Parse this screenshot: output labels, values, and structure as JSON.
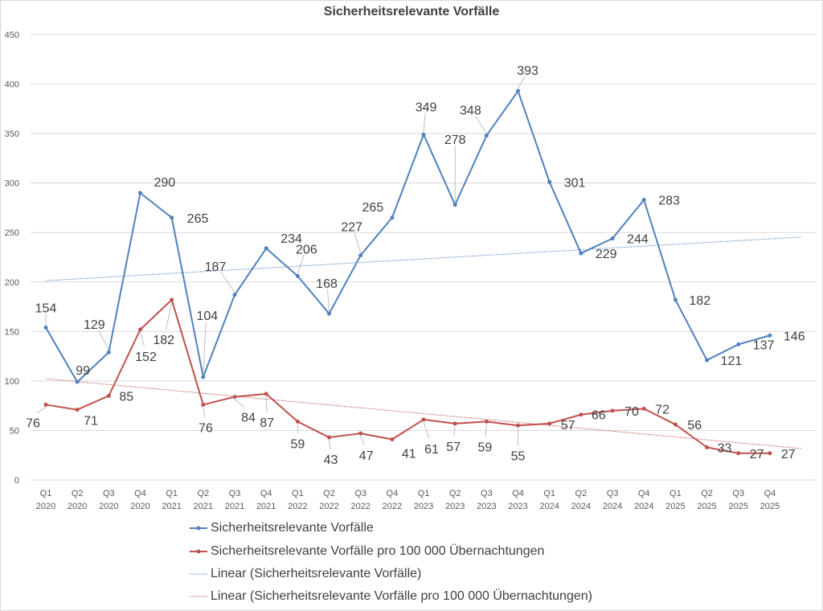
{
  "chart_data": {
    "type": "line",
    "title": "Sicherheitsrelevante Vorfälle",
    "xlabel": "",
    "ylabel": "",
    "ylim": [
      0,
      450
    ],
    "yticks": [
      0,
      50,
      100,
      150,
      200,
      250,
      300,
      350,
      400,
      450
    ],
    "grid": true,
    "legend_placement": "bottom",
    "categories": [
      "Q1 2020",
      "Q2 2020",
      "Q3 2020",
      "Q4 2020",
      "Q1 2021",
      "Q2 2021",
      "Q3 2021",
      "Q4 2021",
      "Q1 2022",
      "Q2 2022",
      "Q3 2022",
      "Q4 2022",
      "Q1 2023",
      "Q2 2023",
      "Q3 2023",
      "Q4 2023",
      "Q1 2024",
      "Q2 2024",
      "Q3 2024",
      "Q4 2024",
      "Q1 2025",
      "Q2 2025",
      "Q3 2025",
      "Q4 2025"
    ],
    "series": [
      {
        "name": "Sicherheitsrelevante Vorfälle",
        "color": "#4f81bd",
        "values": [
          154,
          99,
          129,
          290,
          265,
          104,
          187,
          234,
          206,
          168,
          227,
          265,
          349,
          278,
          348,
          393,
          301,
          229,
          244,
          283,
          182,
          121,
          137,
          146
        ]
      },
      {
        "name": "Sicherheitsrelevante Vorfälle pro 100 000 Übernachtungen",
        "color": "#c0504d",
        "values": [
          76,
          71,
          85,
          152,
          182,
          76,
          84,
          87,
          59,
          43,
          47,
          41,
          61,
          57,
          59,
          55,
          57,
          66,
          70,
          72,
          56,
          33,
          27,
          27
        ]
      }
    ],
    "trendlines": [
      {
        "name": "Linear (Sicherheitsrelevante Vorfälle)",
        "type": "linear",
        "of_series": 0,
        "color": "#4f81bd",
        "forward_periods": 1
      },
      {
        "name": "Linear (Sicherheitsrelevante Vorfälle pro 100 000 Übernachtungen)",
        "type": "linear",
        "of_series": 1,
        "color": "#c0504d",
        "forward_periods": 1
      }
    ]
  }
}
